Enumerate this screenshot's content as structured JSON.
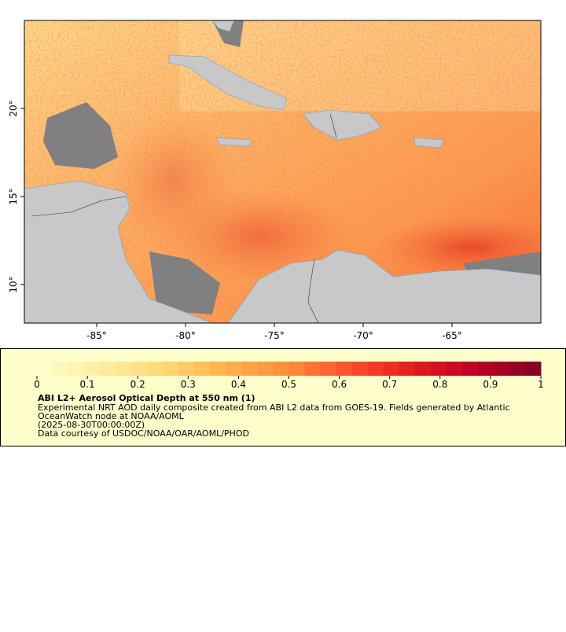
{
  "map": {
    "lon_ticks": [
      {
        "value": -85,
        "label": "-85°"
      },
      {
        "value": -80,
        "label": "-80°"
      },
      {
        "value": -75,
        "label": "-75°"
      },
      {
        "value": -70,
        "label": "-70°"
      },
      {
        "value": -65,
        "label": "-65°"
      }
    ],
    "lat_ticks": [
      {
        "value": 10,
        "label": "10°"
      },
      {
        "value": 15,
        "label": "15°"
      },
      {
        "value": 20,
        "label": "20°"
      }
    ],
    "xlim": [
      -89.07,
      -60
    ],
    "ylim": [
      7.81,
      25
    ]
  },
  "colorbar": {
    "range": [
      0,
      1
    ],
    "ticks": [
      0,
      0.1,
      0.2,
      0.3,
      0.4,
      0.5,
      0.6,
      0.7,
      0.8,
      0.9,
      1
    ],
    "colors": [
      "#ffffcc",
      "#ffeda0",
      "#fed976",
      "#feb24c",
      "#fd8d3c",
      "#fc4e2a",
      "#e31a1c",
      "#bd0026",
      "#800026"
    ]
  },
  "title": "ABI L2+ Aerosol Optical Depth at 550 nm (1)",
  "description": [
    "Experimental NRT AOD daily composite created from ABI L2 data from GOES-19. Fields generated by Atlantic",
    "OceanWatch node at NOAA/AOML",
    "(2025-08-30T00:00:00Z)",
    "Data courtesy of USDOC/NOAA/OAR/AOML/PHOD"
  ]
}
